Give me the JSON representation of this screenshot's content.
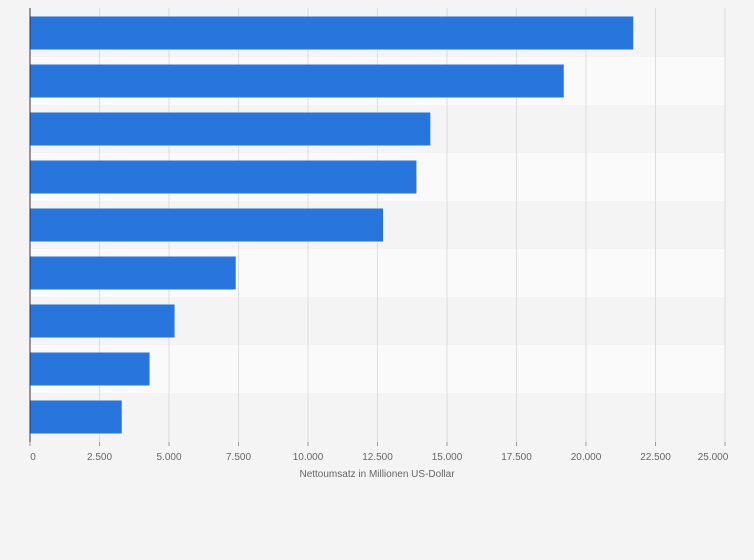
{
  "chart_data": {
    "type": "bar",
    "orientation": "horizontal",
    "title": "",
    "xlabel": "Nettoumsatz in Millionen US-Dollar",
    "ylabel": "",
    "categories": [
      "",
      "",
      "",
      "",
      "",
      "",
      "",
      "",
      ""
    ],
    "values": [
      21700,
      19200,
      14400,
      13900,
      12700,
      7400,
      5200,
      4300,
      3300
    ],
    "xlim": [
      0,
      25000
    ],
    "x_ticks": [
      0,
      2500,
      5000,
      7500,
      10000,
      12500,
      15000,
      17500,
      20000,
      22500,
      25000
    ],
    "x_tick_labels": [
      "0",
      "2.500",
      "5.000",
      "7.500",
      "10.000",
      "12.500",
      "15.000",
      "17.500",
      "20.000",
      "22.500",
      "25.000"
    ],
    "grid": true,
    "legend": "none",
    "colors": {
      "bar": "#2876dd",
      "band_light": "#fafafa",
      "band_dark": "#f4f4f4",
      "grid": "#dddddd",
      "axis": "#333333",
      "text": "#666666"
    }
  }
}
